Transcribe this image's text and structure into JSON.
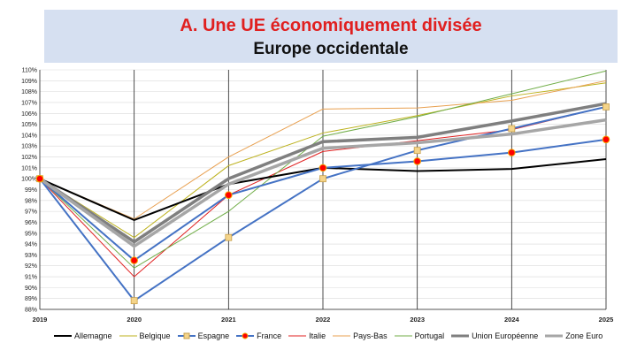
{
  "header": {
    "title": "A. Une UE économiquement divisée",
    "subtitle": "Europe occidentale"
  },
  "chart_data": {
    "type": "line",
    "x": [
      "2019",
      "2020",
      "2021",
      "2022",
      "2023",
      "2024",
      "2025"
    ],
    "ylim": [
      88,
      110
    ],
    "y_ticks": [
      "88%",
      "89%",
      "90%",
      "91%",
      "92%",
      "93%",
      "94%",
      "95%",
      "96%",
      "97%",
      "98%",
      "99%",
      "100%",
      "101%",
      "102%",
      "103%",
      "104%",
      "105%",
      "106%",
      "107%",
      "108%",
      "109%",
      "110%"
    ],
    "grid": "vertical",
    "legend_position": "bottom",
    "series": [
      {
        "name": "Allemagne",
        "color": "#000000",
        "width": 2,
        "marker": "none",
        "values": [
          100,
          96.2,
          99.5,
          101.0,
          100.7,
          100.9,
          101.8
        ]
      },
      {
        "name": "Belgique",
        "color": "#bdb21e",
        "width": 1,
        "marker": "none",
        "values": [
          100,
          94.6,
          101.2,
          104.2,
          105.8,
          107.6,
          108.8
        ]
      },
      {
        "name": "Espagne",
        "color": "#4472c4",
        "width": 2,
        "marker": "square",
        "marker_fill": "#f4d48a",
        "marker_stroke": "#c9a04a",
        "values": [
          100,
          88.8,
          94.6,
          100.0,
          102.6,
          104.6,
          106.6
        ]
      },
      {
        "name": "France",
        "color": "#4472c4",
        "width": 2,
        "marker": "circle",
        "marker_fill": "#ff0000",
        "marker_stroke": "#f2a900",
        "values": [
          100,
          92.5,
          98.5,
          101.0,
          101.6,
          102.4,
          103.6
        ]
      },
      {
        "name": "Italie",
        "color": "#e02020",
        "width": 1,
        "marker": "none",
        "values": [
          100,
          91.0,
          98.5,
          102.5,
          103.5,
          104.5,
          106.6
        ]
      },
      {
        "name": "Pays-Bas",
        "color": "#e8a050",
        "width": 1,
        "marker": "none",
        "values": [
          100,
          96.3,
          102.0,
          106.4,
          106.5,
          107.2,
          109.0
        ]
      },
      {
        "name": "Portugal",
        "color": "#70ad47",
        "width": 1,
        "marker": "none",
        "values": [
          100,
          91.8,
          97.0,
          103.9,
          105.7,
          107.8,
          109.9
        ]
      },
      {
        "name": "Union Européenne",
        "color": "#7f7f7f",
        "width": 3.5,
        "marker": "none",
        "values": [
          100,
          94.2,
          100.0,
          103.4,
          103.8,
          105.3,
          106.9
        ]
      },
      {
        "name": "Zone Euro",
        "color": "#a6a6a6",
        "width": 3.5,
        "marker": "none",
        "values": [
          100,
          93.8,
          99.5,
          102.8,
          103.3,
          104.1,
          105.4
        ]
      }
    ]
  }
}
